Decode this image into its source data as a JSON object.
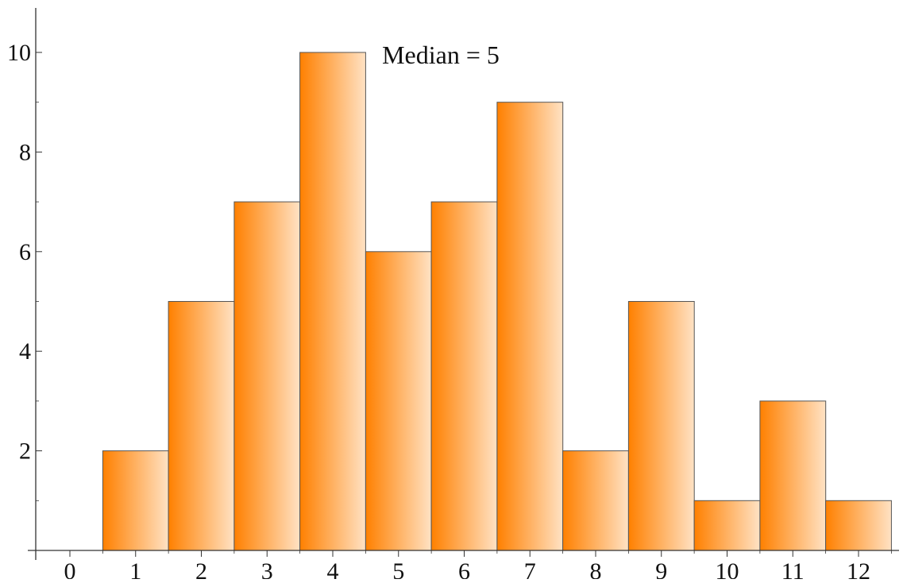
{
  "chart_data": {
    "type": "bar",
    "title": "",
    "annotation": "Median = 5",
    "xlabel": "",
    "ylabel": "",
    "categories": [
      "1",
      "2",
      "3",
      "4",
      "5",
      "6",
      "7",
      "8",
      "9",
      "10",
      "11",
      "12"
    ],
    "values": [
      2,
      5,
      7,
      10,
      6,
      7,
      9,
      2,
      5,
      1,
      3,
      1
    ],
    "x_ticks": [
      "0",
      "1",
      "2",
      "3",
      "4",
      "5",
      "6",
      "7",
      "8",
      "9",
      "10",
      "11",
      "12"
    ],
    "y_ticks": [
      "2",
      "4",
      "6",
      "8",
      "10"
    ],
    "ylim": [
      0,
      10.8
    ],
    "grid": false,
    "legend": "none",
    "colors": {
      "bar_dark": "#ff8000",
      "bar_light": "#ffe2c4",
      "bar_stroke": "#555555",
      "axis": "#333333"
    }
  }
}
